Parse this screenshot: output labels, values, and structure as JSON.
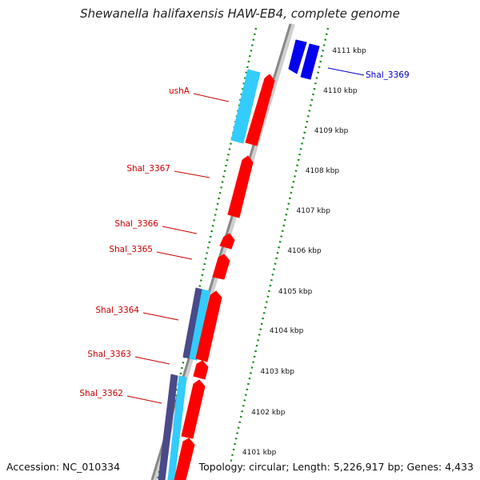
{
  "title": "Shewanella halifaxensis HAW-EB4, complete genome",
  "footer": {
    "accession": "Accession: NC_010334",
    "summary": "Topology: circular; Length: 5,226,917 bp; Genes: 4,433"
  },
  "colors": {
    "forward_cds": "#ff0000",
    "reverse_cds": "#0000ee",
    "forward_label": "#cc0000",
    "reverse_label": "#0000cc",
    "rna_light": "#33ccff",
    "rna_dark": "#4a4a8a",
    "tick": "#1a8a1a",
    "backbone": "#888888"
  },
  "scale_ticks": [
    "4101 kbp",
    "4102 kbp",
    "4103 kbp",
    "4104 kbp",
    "4105 kbp",
    "4106 kbp",
    "4107 kbp",
    "4108 kbp",
    "4109 kbp",
    "4110 kbp",
    "4111 kbp"
  ],
  "genes": [
    {
      "label": "Shal_3369",
      "strand": "reverse"
    },
    {
      "label": "ushA",
      "strand": "forward"
    },
    {
      "label": "Shal_3367",
      "strand": "forward"
    },
    {
      "label": "Shal_3366",
      "strand": "forward"
    },
    {
      "label": "Shal_3365",
      "strand": "forward"
    },
    {
      "label": "Shal_3364",
      "strand": "forward"
    },
    {
      "label": "Shal_3363",
      "strand": "forward"
    },
    {
      "label": "Shal_3362",
      "strand": "forward"
    }
  ]
}
